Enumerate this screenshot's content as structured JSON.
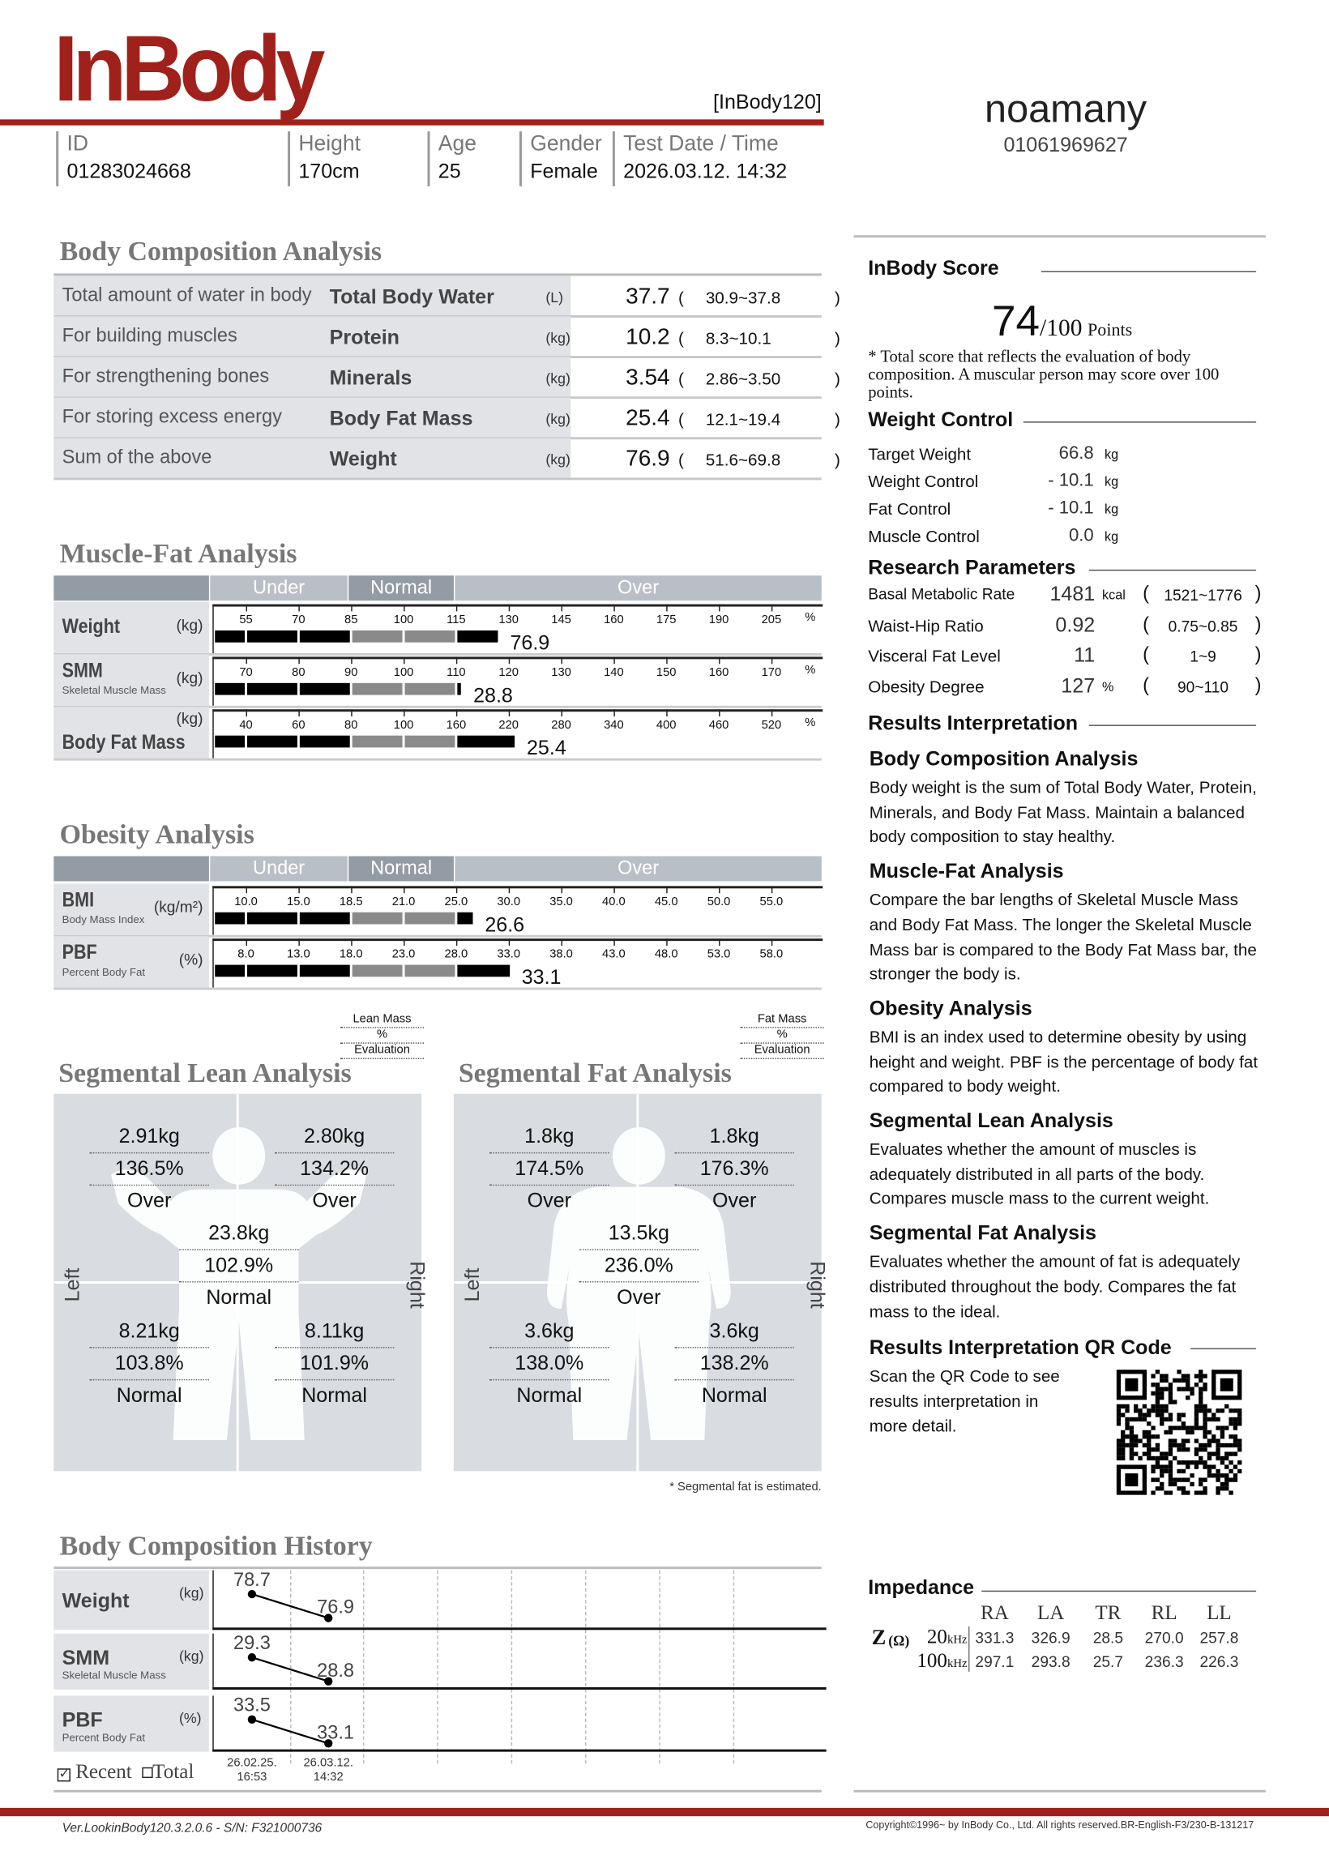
{
  "header": {
    "logo": "InBody",
    "model": "[InBody120]",
    "name": "noamany",
    "phone": "01061969627",
    "fields": [
      {
        "label": "ID",
        "value": "01283024668"
      },
      {
        "label": "Height",
        "value": "170cm"
      },
      {
        "label": "Age",
        "value": "25"
      },
      {
        "label": "Gender",
        "value": "Female"
      },
      {
        "label": "Test Date / Time",
        "value": "2026.03.12. 14:32"
      }
    ]
  },
  "bca": {
    "title": "Body Composition Analysis",
    "rows": [
      {
        "desc": "Total amount of water in body",
        "name": "Total Body Water",
        "unit": "(L)",
        "value": "37.7",
        "range": "30.9~37.8"
      },
      {
        "desc": "For building muscles",
        "name": "Protein",
        "unit": "(kg)",
        "value": "10.2",
        "range": "8.3~10.1"
      },
      {
        "desc": "For strengthening bones",
        "name": "Minerals",
        "unit": "(kg)",
        "value": "3.54",
        "range": "2.86~3.50"
      },
      {
        "desc": "For storing excess energy",
        "name": "Body Fat Mass",
        "unit": "(kg)",
        "value": "25.4",
        "range": "12.1~19.4"
      },
      {
        "desc": "Sum of the above",
        "name": "Weight",
        "unit": "(kg)",
        "value": "76.9",
        "range": "51.6~69.8"
      }
    ]
  },
  "bands": {
    "under": "Under",
    "normal": "Normal",
    "over": "Over"
  },
  "mfa": {
    "title": "Muscle-Fat Analysis",
    "rows": [
      {
        "name": "Weight",
        "sub": "",
        "unit": "(kg)",
        "ticks": [
          55,
          70,
          85,
          100,
          115,
          130,
          145,
          160,
          175,
          190,
          205
        ],
        "tick_labels": [
          "55",
          "70",
          "85",
          "100",
          "115",
          "130",
          "145",
          "160",
          "175",
          "190",
          "205"
        ],
        "pct": "%",
        "level_percent": 127,
        "value": "76.9"
      },
      {
        "name": "SMM",
        "sub": "Skeletal Muscle Mass",
        "unit": "(kg)",
        "ticks": [
          70,
          80,
          90,
          100,
          110,
          120,
          130,
          140,
          150,
          160,
          170
        ],
        "tick_labels": [
          "70",
          "80",
          "90",
          "100",
          "110",
          "120",
          "130",
          "140",
          "150",
          "160",
          "170"
        ],
        "pct": "%",
        "level_percent": 111,
        "value": "28.8"
      },
      {
        "name": "Body Fat Mass",
        "sub": "",
        "unit": "(kg)",
        "ticks": [
          40,
          60,
          80,
          100,
          160,
          220,
          280,
          340,
          400,
          460,
          520
        ],
        "tick_labels": [
          "40",
          "60",
          "80",
          "100",
          "160",
          "220",
          "280",
          "340",
          "400",
          "460",
          "520"
        ],
        "pct": "%",
        "level_percent": 227,
        "value": "25.4"
      }
    ]
  },
  "oa": {
    "title": "Obesity Analysis",
    "rows": [
      {
        "name": "BMI",
        "sub": "Body Mass Index",
        "unit": "(kg/m²)",
        "ticks": [
          10,
          15,
          18.5,
          21,
          25,
          30,
          35,
          40,
          45,
          50,
          55
        ],
        "tick_labels": [
          "10.0",
          "15.0",
          "18.5",
          "21.0",
          "25.0",
          "30.0",
          "35.0",
          "40.0",
          "45.0",
          "50.0",
          "55.0"
        ],
        "pct": "",
        "level_percent": 26.6,
        "value": "26.6"
      },
      {
        "name": "PBF",
        "sub": "Percent Body Fat",
        "unit": "(%)",
        "ticks": [
          8,
          13,
          18,
          23,
          28,
          33,
          38,
          43,
          48,
          53,
          58
        ],
        "tick_labels": [
          "8.0",
          "13.0",
          "18.0",
          "23.0",
          "28.0",
          "33.0",
          "38.0",
          "43.0",
          "48.0",
          "53.0",
          "58.0"
        ],
        "pct": "",
        "level_percent": 33.1,
        "value": "33.1"
      }
    ]
  },
  "segmental": {
    "lean": {
      "title": "Segmental Lean Analysis",
      "legend": [
        "Lean Mass",
        "%",
        "Evaluation"
      ],
      "left_arm": [
        "2.91kg",
        "136.5%",
        "Over"
      ],
      "right_arm": [
        "2.80kg",
        "134.2%",
        "Over"
      ],
      "trunk": [
        "23.8kg",
        "102.9%",
        "Normal"
      ],
      "left_leg": [
        "8.21kg",
        "103.8%",
        "Normal"
      ],
      "right_leg": [
        "8.11kg",
        "101.9%",
        "Normal"
      ]
    },
    "fat": {
      "title": "Segmental Fat Analysis",
      "legend": [
        "Fat Mass",
        "%",
        "Evaluation"
      ],
      "left_arm": [
        "1.8kg",
        "174.5%",
        "Over"
      ],
      "right_arm": [
        "1.8kg",
        "176.3%",
        "Over"
      ],
      "trunk": [
        "13.5kg",
        "236.0%",
        "Over"
      ],
      "left_leg": [
        "3.6kg",
        "138.0%",
        "Normal"
      ],
      "right_leg": [
        "3.6kg",
        "138.2%",
        "Normal"
      ]
    },
    "left": "Left",
    "right": "Right",
    "note": "* Segmental fat is estimated."
  },
  "history": {
    "title": "Body Composition History",
    "recent": "Recent",
    "total": "Total",
    "recent_checked": true,
    "dates": [
      [
        "26.02.25.",
        "16:53"
      ],
      [
        "26.03.12.",
        "14:32"
      ]
    ],
    "rows": [
      {
        "name": "Weight",
        "sub": "",
        "unit": "(kg)",
        "values": [
          78.7,
          76.9
        ],
        "labels": [
          "78.7",
          "76.9"
        ]
      },
      {
        "name": "SMM",
        "sub": "Skeletal Muscle Mass",
        "unit": "(kg)",
        "values": [
          29.3,
          28.8
        ],
        "labels": [
          "29.3",
          "28.8"
        ]
      },
      {
        "name": "PBF",
        "sub": "Percent Body Fat",
        "unit": "(%)",
        "values": [
          33.5,
          33.1
        ],
        "labels": [
          "33.5",
          "33.1"
        ]
      }
    ]
  },
  "score": {
    "title": "InBody Score",
    "value": "74",
    "max": "/100",
    "unit": "Points",
    "note": "* Total score that reflects the evaluation of body composition. A muscular person may score over 100 points."
  },
  "weight_control": {
    "title": "Weight Control",
    "rows": [
      {
        "label": "Target Weight",
        "value": "66.8",
        "unit": "kg"
      },
      {
        "label": "Weight Control",
        "value": "- 10.1",
        "unit": "kg"
      },
      {
        "label": "Fat Control",
        "value": "- 10.1",
        "unit": "kg"
      },
      {
        "label": "Muscle Control",
        "value": "0.0",
        "unit": "kg"
      }
    ]
  },
  "research": {
    "title": "Research Parameters",
    "rows": [
      {
        "label": "Basal Metabolic Rate",
        "value": "1481",
        "unit": "kcal",
        "range": "1521~1776"
      },
      {
        "label": "Waist-Hip Ratio",
        "value": "0.92",
        "unit": "",
        "range": "0.75~0.85"
      },
      {
        "label": "Visceral Fat Level",
        "value": "11",
        "unit": "",
        "range": "1~9"
      },
      {
        "label": "Obesity Degree",
        "value": "127",
        "unit": "%",
        "range": "90~110"
      }
    ]
  },
  "interpretation": {
    "title": "Results Interpretation",
    "sections": [
      {
        "h": "Body Composition Analysis",
        "t": "Body weight is the sum of Total Body Water, Protein, Minerals, and Body Fat Mass. Maintain a balanced body composition to stay healthy."
      },
      {
        "h": "Muscle-Fat Analysis",
        "t": "Compare the bar lengths of Skeletal Muscle Mass and Body Fat Mass. The longer the Skeletal Muscle Mass bar is compared to the Body Fat Mass bar, the stronger the body is."
      },
      {
        "h": "Obesity Analysis",
        "t": "BMI is an index used to determine obesity by using height and weight. PBF is the percentage of body fat compared to body weight."
      },
      {
        "h": "Segmental Lean Analysis",
        "t": "Evaluates whether the amount of muscles is adequately distributed in all parts of the body. Compares muscle mass to the current weight."
      },
      {
        "h": "Segmental Fat Analysis",
        "t": "Evaluates whether the amount of fat is adequately distributed throughout the body. Compares the fat mass to the ideal."
      }
    ]
  },
  "qr": {
    "title": "Results Interpretation QR Code",
    "text": "Scan the QR Code to see results interpretation in more detail."
  },
  "impedance": {
    "title": "Impedance",
    "columns": [
      "RA",
      "LA",
      "TR",
      "RL",
      "LL"
    ],
    "z_label": "Z",
    "ohm": "(Ω)",
    "rows": [
      {
        "freq": "20",
        "unit": "kHz",
        "values": [
          "331.3",
          "326.9",
          "28.5",
          "270.0",
          "257.8"
        ]
      },
      {
        "freq": "100",
        "unit": "kHz",
        "values": [
          "297.1",
          "293.8",
          "25.7",
          "236.3",
          "226.3"
        ]
      }
    ]
  },
  "footer": {
    "version": "Ver.LookinBody120.3.2.0.6 - S/N: F321000736",
    "copyright": "Copyright©1996~ by InBody Co., Ltd. All rights reserved.BR-English-F3/230-B-131217"
  },
  "colors": {
    "brand": "#a0211b",
    "band_under": "#b9bfc6",
    "band_normal": "#939ba4",
    "panel": "#d9dce1",
    "bar_black": "#000000",
    "bar_grey": "#8a8a8a"
  }
}
